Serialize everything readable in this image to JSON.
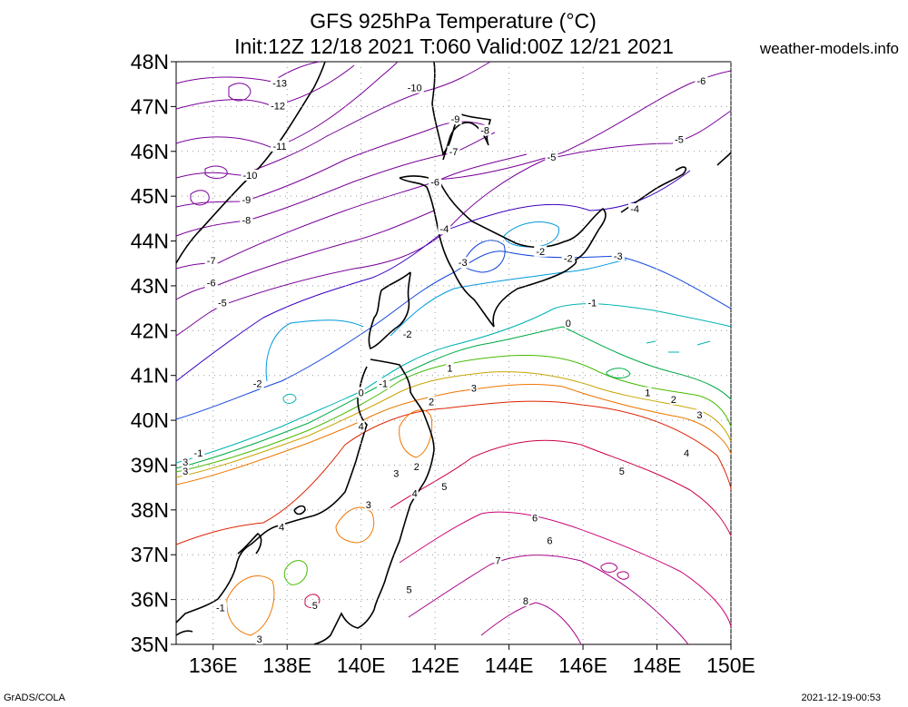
{
  "header": {
    "title_line1": "GFS 925hPa Temperature (°C)",
    "title_line2": "Init:12Z 12/18 2021 T:060 Valid:00Z 12/21 2021",
    "site": "weather-models.info"
  },
  "footer": {
    "credit": "GrADS/COLA",
    "timestamp": "2021-12-19-00:53"
  },
  "map": {
    "lon_labels": [
      "136E",
      "138E",
      "140E",
      "142E",
      "144E",
      "146E",
      "148E",
      "150E"
    ],
    "lat_labels": [
      "35N",
      "36N",
      "37N",
      "38N",
      "39N",
      "40N",
      "41N",
      "42N",
      "43N",
      "44N",
      "45N",
      "46N",
      "47N",
      "48N"
    ],
    "lon_range": [
      135,
      150
    ],
    "lat_range": [
      35,
      48
    ],
    "contour_interval_c": 1,
    "grid": "dotted"
  },
  "contour_labels": [
    {
      "text": "-13",
      "lon": 137.8,
      "lat": 47.5
    },
    {
      "text": "-12",
      "lon": 137.75,
      "lat": 47.0
    },
    {
      "text": "-11",
      "lon": 137.8,
      "lat": 46.1
    },
    {
      "text": "-10",
      "lon": 137.0,
      "lat": 45.45
    },
    {
      "text": "-9",
      "lon": 136.9,
      "lat": 44.9
    },
    {
      "text": "-8",
      "lon": 136.9,
      "lat": 44.45
    },
    {
      "text": "-7",
      "lon": 135.95,
      "lat": 43.55
    },
    {
      "text": "-6",
      "lon": 135.95,
      "lat": 43.05
    },
    {
      "text": "-5",
      "lon": 136.25,
      "lat": 42.6
    },
    {
      "text": "-10",
      "lon": 141.45,
      "lat": 47.4
    },
    {
      "text": "-9",
      "lon": 142.55,
      "lat": 46.7
    },
    {
      "text": "-8",
      "lon": 143.35,
      "lat": 46.45
    },
    {
      "text": "-7",
      "lon": 142.5,
      "lat": 45.98
    },
    {
      "text": "-6",
      "lon": 142.0,
      "lat": 45.3
    },
    {
      "text": "-5",
      "lon": 145.15,
      "lat": 45.85
    },
    {
      "text": "-6",
      "lon": 149.2,
      "lat": 47.55
    },
    {
      "text": "-5",
      "lon": 148.6,
      "lat": 46.25
    },
    {
      "text": "-4",
      "lon": 147.4,
      "lat": 44.7
    },
    {
      "text": "-4",
      "lon": 142.25,
      "lat": 44.25
    },
    {
      "text": "-3",
      "lon": 142.75,
      "lat": 43.5
    },
    {
      "text": "-2",
      "lon": 144.85,
      "lat": 43.75
    },
    {
      "text": "-2",
      "lon": 145.6,
      "lat": 43.6
    },
    {
      "text": "-3",
      "lon": 146.95,
      "lat": 43.65
    },
    {
      "text": "-1",
      "lon": 146.25,
      "lat": 42.6
    },
    {
      "text": "0",
      "lon": 145.6,
      "lat": 42.15
    },
    {
      "text": "-2",
      "lon": 141.25,
      "lat": 41.9
    },
    {
      "text": "-2",
      "lon": 137.2,
      "lat": 40.8
    },
    {
      "text": "-1",
      "lon": 135.6,
      "lat": 39.25
    },
    {
      "text": "-1",
      "lon": 140.6,
      "lat": 40.8
    },
    {
      "text": "0",
      "lon": 140.0,
      "lat": 40.6
    },
    {
      "text": "1",
      "lon": 142.4,
      "lat": 41.15
    },
    {
      "text": "2",
      "lon": 141.9,
      "lat": 40.4
    },
    {
      "text": "3",
      "lon": 143.05,
      "lat": 40.7
    },
    {
      "text": "1",
      "lon": 147.75,
      "lat": 40.6
    },
    {
      "text": "2",
      "lon": 148.45,
      "lat": 40.45
    },
    {
      "text": "3",
      "lon": 149.15,
      "lat": 40.1
    },
    {
      "text": "4",
      "lon": 148.8,
      "lat": 39.25
    },
    {
      "text": "4",
      "lon": 140.0,
      "lat": 39.85
    },
    {
      "text": "3",
      "lon": 135.25,
      "lat": 39.05
    },
    {
      "text": "3",
      "lon": 135.25,
      "lat": 38.85
    },
    {
      "text": "3",
      "lon": 140.95,
      "lat": 38.8
    },
    {
      "text": "2",
      "lon": 141.5,
      "lat": 38.95
    },
    {
      "text": "4",
      "lon": 141.45,
      "lat": 38.35
    },
    {
      "text": "5",
      "lon": 142.25,
      "lat": 38.5
    },
    {
      "text": "3",
      "lon": 140.2,
      "lat": 38.1
    },
    {
      "text": "5",
      "lon": 147.05,
      "lat": 38.85
    },
    {
      "text": "6",
      "lon": 144.7,
      "lat": 37.8
    },
    {
      "text": "6",
      "lon": 145.1,
      "lat": 37.3
    },
    {
      "text": "4",
      "lon": 137.85,
      "lat": 37.6
    },
    {
      "text": "7",
      "lon": 143.7,
      "lat": 36.85
    },
    {
      "text": "5",
      "lon": 141.3,
      "lat": 36.2
    },
    {
      "text": "8",
      "lon": 144.45,
      "lat": 35.95
    },
    {
      "text": "5",
      "lon": 138.75,
      "lat": 35.85
    },
    {
      "text": "-1",
      "lon": 136.2,
      "lat": 35.8
    },
    {
      "text": "3",
      "lon": 137.25,
      "lat": 35.1
    }
  ]
}
